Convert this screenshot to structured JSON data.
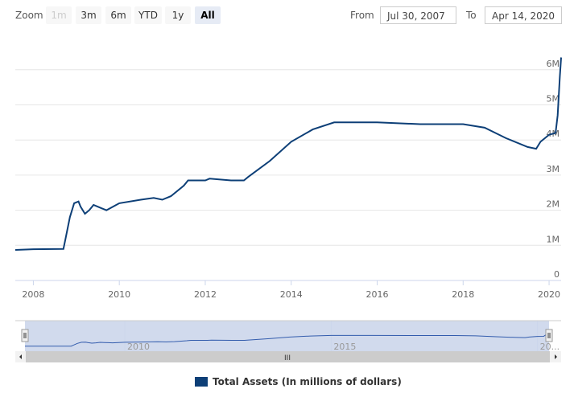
{
  "range_selector": {
    "zoom_label": "Zoom",
    "buttons": [
      {
        "label": "1m",
        "state": "disabled"
      },
      {
        "label": "3m",
        "state": "normal"
      },
      {
        "label": "6m",
        "state": "normal"
      },
      {
        "label": "YTD",
        "state": "normal"
      },
      {
        "label": "1y",
        "state": "normal"
      },
      {
        "label": "All",
        "state": "active"
      }
    ],
    "from_label": "From",
    "from_value": "Jul 30, 2007",
    "to_label": "To",
    "to_value": "Apr 14, 2020"
  },
  "chart_data": {
    "type": "line",
    "series": [
      {
        "name": "Total Assets (In millions of dollars)",
        "color": "#0d3f77",
        "x": [
          2007.58,
          2008.0,
          2008.7,
          2008.75,
          2008.85,
          2008.95,
          2009.05,
          2009.1,
          2009.2,
          2009.3,
          2009.4,
          2009.5,
          2009.6,
          2009.7,
          2010.0,
          2010.5,
          2010.8,
          2011.0,
          2011.2,
          2011.5,
          2011.6,
          2012.0,
          2012.1,
          2012.6,
          2012.9,
          2013.0,
          2013.5,
          2014.0,
          2014.5,
          2015.0,
          2016.0,
          2017.0,
          2018.0,
          2018.5,
          2019.0,
          2019.5,
          2019.7,
          2019.8,
          2020.0,
          2020.15,
          2020.2,
          2020.25,
          2020.28
        ],
        "y": [
          0.87,
          0.89,
          0.9,
          1.2,
          1.8,
          2.2,
          2.25,
          2.1,
          1.9,
          2.0,
          2.15,
          2.1,
          2.05,
          2.0,
          2.2,
          2.3,
          2.35,
          2.3,
          2.4,
          2.7,
          2.85,
          2.85,
          2.9,
          2.85,
          2.85,
          2.95,
          3.4,
          3.95,
          4.3,
          4.5,
          4.5,
          4.45,
          4.45,
          4.35,
          4.05,
          3.8,
          3.75,
          3.95,
          4.15,
          4.2,
          4.7,
          5.8,
          6.35
        ]
      }
    ],
    "xlim": [
      2007.58,
      2020.28
    ],
    "ylim": [
      0,
      6.5
    ],
    "x_ticks": [
      "2008",
      "2010",
      "2012",
      "2014",
      "2016",
      "2018",
      "2020"
    ],
    "y_ticks": [
      "0",
      "1M",
      "2M",
      "3M",
      "4M",
      "5M",
      "6M"
    ],
    "navigator_ticks": [
      "2010",
      "2015",
      "20..."
    ],
    "grid": true,
    "legend": "bottom"
  },
  "legend": {
    "label": "Total Assets (In millions of dollars)"
  }
}
